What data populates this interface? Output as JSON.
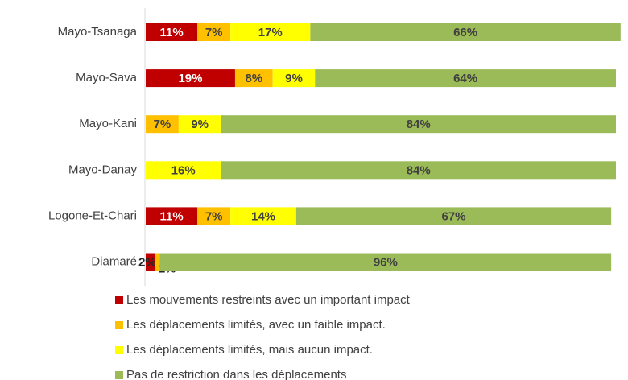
{
  "chart_data": {
    "type": "bar",
    "orientation": "horizontal",
    "stacked": true,
    "categories": [
      "Mayo-Tsanaga",
      "Mayo-Sava",
      "Mayo-Kani",
      "Mayo-Danay",
      "Logone-Et-Chari",
      "Diamaré"
    ],
    "series": [
      {
        "name": "Les mouvements restreints avec un important impact",
        "color": "#c00000",
        "values": [
          11,
          19,
          null,
          null,
          11,
          2
        ],
        "value_labels": [
          "11%",
          "19%",
          null,
          null,
          "11%",
          "2%"
        ]
      },
      {
        "name": "Les déplacements limités, avec un faible impact.",
        "color": "#ffc000",
        "values": [
          7,
          8,
          7,
          null,
          7,
          1
        ],
        "value_labels": [
          "7%",
          "8%",
          "7%",
          null,
          "7%",
          "1%"
        ]
      },
      {
        "name": "Les déplacements limités, mais aucun impact.",
        "color": "#ffff00",
        "values": [
          17,
          9,
          9,
          16,
          14,
          null
        ],
        "value_labels": [
          "17%",
          "9%",
          "9%",
          "16%",
          "14%",
          null
        ]
      },
      {
        "name": "Pas de restriction dans les déplacements",
        "color": "#9bbb59",
        "values": [
          66,
          64,
          84,
          84,
          67,
          96
        ],
        "value_labels": [
          "66%",
          "64%",
          "84%",
          "84%",
          "67%",
          "96%"
        ]
      }
    ],
    "legend": "bottom"
  }
}
